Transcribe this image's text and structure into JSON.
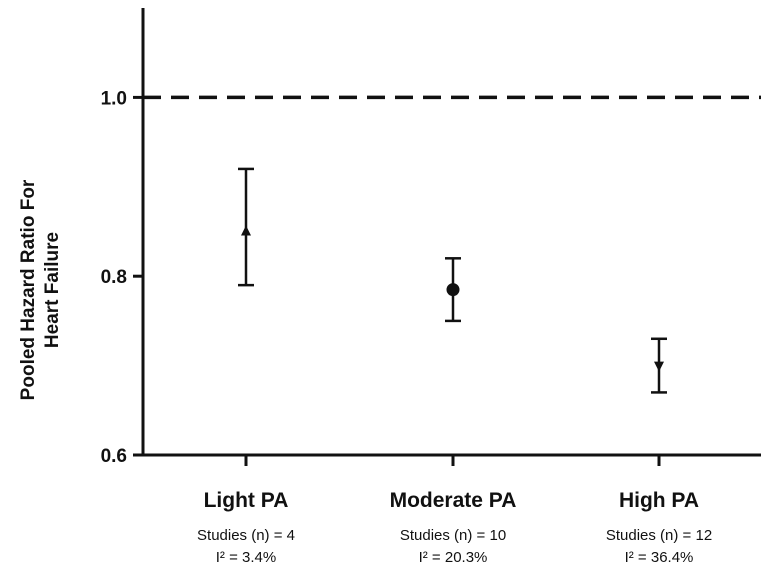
{
  "chart_data": {
    "type": "scatter",
    "ylabel_lines": [
      "Pooled Hazard Ratio For",
      "Heart Failure"
    ],
    "ylim": [
      0.6,
      1.1
    ],
    "yticks": [
      0.6,
      0.8,
      1.0
    ],
    "ytick_labels": [
      "0.6",
      "0.8",
      "1.0"
    ],
    "reference_line": 1.0,
    "categories": [
      {
        "label": "Light PA",
        "value": 0.85,
        "ci_low": 0.79,
        "ci_high": 0.92,
        "marker": "triangle-up",
        "studies": "Studies (n) = 4",
        "i2": "I² = 3.4%"
      },
      {
        "label": "Moderate PA",
        "value": 0.785,
        "ci_low": 0.75,
        "ci_high": 0.82,
        "marker": "circle",
        "studies": "Studies (n) = 10",
        "i2": "I² = 20.3%"
      },
      {
        "label": "High PA",
        "value": 0.7,
        "ci_low": 0.67,
        "ci_high": 0.73,
        "marker": "triangle-down",
        "studies": "Studies (n) = 12",
        "i2": "I² = 36.4%"
      }
    ],
    "grid": false,
    "legend": "none"
  }
}
